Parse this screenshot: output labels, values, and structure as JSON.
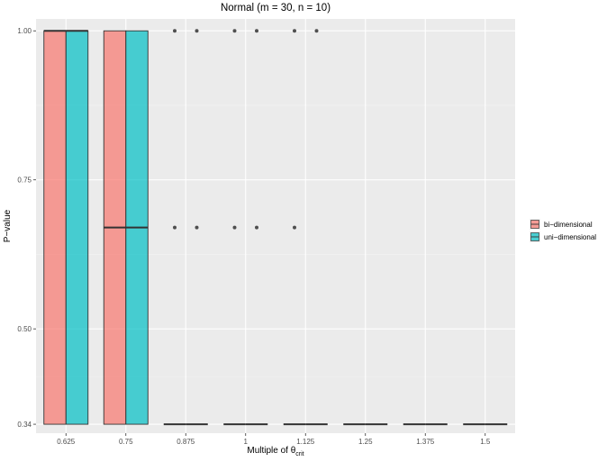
{
  "chart_data": {
    "type": "boxplot",
    "title": "Normal (m = 30, n = 10)",
    "xlabel": "Multiple of θ",
    "xlabel_subscript": "crit",
    "ylabel": "P−value",
    "categories": [
      "0.625",
      "0.75",
      "0.875",
      "1",
      "1.125",
      "1.25",
      "1.375",
      "1.5"
    ],
    "ylim": [
      0.325,
      1.02
    ],
    "yticks": [
      0.34,
      0.5,
      0.75,
      1.0
    ],
    "ytick_labels": [
      "0.34",
      "0.50",
      "0.75",
      "1.00"
    ],
    "grid": true,
    "legend_position": "right",
    "series": [
      {
        "name": "bi−dimensional",
        "color": "#F8766D",
        "boxes": [
          {
            "q1": 0.34,
            "median": 1.0,
            "q3": 1.0
          },
          {
            "q1": 0.34,
            "median": 0.67,
            "q3": 1.0
          },
          {
            "q1": 0.34,
            "median": 0.34,
            "q3": 0.34
          },
          {
            "q1": 0.34,
            "median": 0.34,
            "q3": 0.34
          },
          {
            "q1": 0.34,
            "median": 0.34,
            "q3": 0.34
          },
          {
            "q1": 0.34,
            "median": 0.34,
            "q3": 0.34
          },
          {
            "q1": 0.34,
            "median": 0.34,
            "q3": 0.34
          },
          {
            "q1": 0.34,
            "median": 0.34,
            "q3": 0.34
          }
        ],
        "outliers": [
          [],
          [],
          [
            1.0,
            0.67
          ],
          [
            1.0,
            0.67
          ],
          [
            1.0,
            0.67
          ],
          [],
          [],
          []
        ]
      },
      {
        "name": "uni−dimensional",
        "color": "#00BFC4",
        "boxes": [
          {
            "q1": 0.34,
            "median": 1.0,
            "q3": 1.0
          },
          {
            "q1": 0.34,
            "median": 0.67,
            "q3": 1.0
          },
          {
            "q1": 0.34,
            "median": 0.34,
            "q3": 0.34
          },
          {
            "q1": 0.34,
            "median": 0.34,
            "q3": 0.34
          },
          {
            "q1": 0.34,
            "median": 0.34,
            "q3": 0.34
          },
          {
            "q1": 0.34,
            "median": 0.34,
            "q3": 0.34
          },
          {
            "q1": 0.34,
            "median": 0.34,
            "q3": 0.34
          },
          {
            "q1": 0.34,
            "median": 0.34,
            "q3": 0.34
          }
        ],
        "outliers": [
          [],
          [],
          [
            1.0,
            0.67
          ],
          [
            1.0,
            0.67
          ],
          [
            1.0
          ],
          [],
          [],
          []
        ]
      }
    ]
  }
}
